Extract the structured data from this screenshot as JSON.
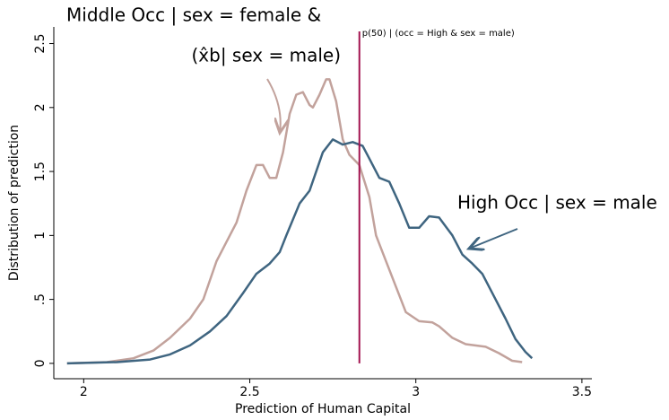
{
  "chart_data": {
    "type": "line",
    "xlabel": "Prediction of Human Capital",
    "ylabel": "Distribution of prediction",
    "xlim": [
      1.91,
      3.53
    ],
    "ylim": [
      -0.12,
      2.63
    ],
    "xticks": [
      2,
      2.5,
      3,
      3.5
    ],
    "yticks": [
      0,
      {
        "value": 0.5,
        "label": ".5"
      },
      1,
      1.5,
      2,
      2.5
    ],
    "vline": {
      "x": 2.83,
      "label": "p(50) | (occ = High & sex = male)",
      "color": "#a3134f"
    },
    "annotations": [
      "Middle Occ | sex = female &",
      "(x̂b| sex = male)",
      "High Occ | sex = male"
    ],
    "series": [
      {
        "color": "#c2a29c",
        "x": [
          1.95,
          2.07,
          2.15,
          2.21,
          2.26,
          2.32,
          2.36,
          2.4,
          2.44,
          2.46,
          2.49,
          2.52,
          2.54,
          2.56,
          2.58,
          2.6,
          2.62,
          2.64,
          2.66,
          2.68,
          2.69,
          2.71,
          2.73,
          2.74,
          2.76,
          2.78,
          2.8,
          2.83,
          2.86,
          2.88,
          2.91,
          2.94,
          2.97,
          3.01,
          3.05,
          3.07,
          3.11,
          3.15,
          3.21,
          3.25,
          3.29,
          3.32
        ],
        "values": [
          0,
          0.01,
          0.04,
          0.1,
          0.2,
          0.35,
          0.5,
          0.8,
          1.0,
          1.1,
          1.35,
          1.55,
          1.55,
          1.45,
          1.45,
          1.65,
          1.95,
          2.1,
          2.12,
          2.02,
          2.0,
          2.1,
          2.22,
          2.22,
          2.05,
          1.75,
          1.63,
          1.55,
          1.3,
          1.0,
          0.8,
          0.6,
          0.4,
          0.33,
          0.32,
          0.29,
          0.2,
          0.15,
          0.13,
          0.08,
          0.02,
          0.01
        ]
      },
      {
        "color": "#3f6580",
        "x": [
          1.95,
          2.1,
          2.2,
          2.26,
          2.32,
          2.38,
          2.43,
          2.48,
          2.52,
          2.56,
          2.59,
          2.61,
          2.65,
          2.68,
          2.72,
          2.75,
          2.78,
          2.81,
          2.84,
          2.86,
          2.89,
          2.92,
          2.95,
          2.98,
          3.01,
          3.04,
          3.07,
          3.11,
          3.14,
          3.17,
          3.2,
          3.24,
          3.27,
          3.3,
          3.33,
          3.35
        ],
        "values": [
          0,
          0.01,
          0.03,
          0.07,
          0.14,
          0.25,
          0.37,
          0.55,
          0.7,
          0.78,
          0.87,
          1.0,
          1.25,
          1.35,
          1.65,
          1.75,
          1.71,
          1.73,
          1.7,
          1.6,
          1.45,
          1.42,
          1.25,
          1.06,
          1.06,
          1.15,
          1.14,
          1.0,
          0.85,
          0.78,
          0.7,
          0.5,
          0.35,
          0.19,
          0.09,
          0.04
        ]
      }
    ]
  }
}
